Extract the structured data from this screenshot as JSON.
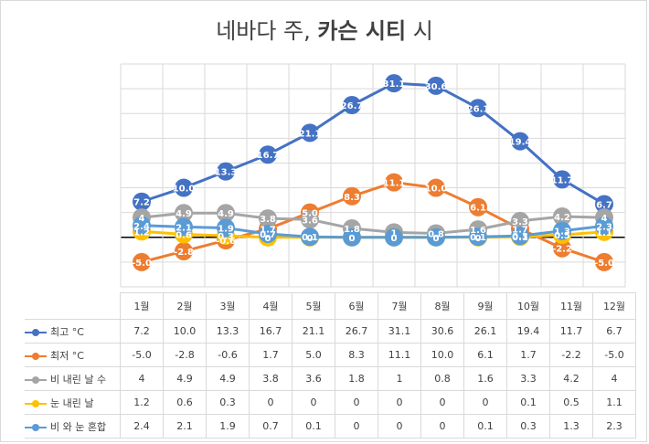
{
  "chart_data": {
    "type": "line",
    "title_prefix": "네바다 주, ",
    "title_bold": "카슨 시티",
    "title_suffix": " 시",
    "categories": [
      "1월",
      "2월",
      "3월",
      "4월",
      "5월",
      "6월",
      "7월",
      "8월",
      "9월",
      "10월",
      "11월",
      "12월"
    ],
    "series": [
      {
        "name": "최고 °C",
        "color": "#4472c4",
        "values": [
          7.2,
          10.0,
          13.3,
          16.7,
          21.1,
          26.7,
          31.1,
          30.6,
          26.1,
          19.4,
          11.7,
          6.7
        ],
        "labels": [
          "7.2",
          "10.0",
          "13.3",
          "16.7",
          "21.1",
          "26.7",
          "31.1",
          "30.6",
          "26.1",
          "19.4",
          "11.7",
          "6.7"
        ]
      },
      {
        "name": "최저 °C",
        "color": "#ed7d31",
        "values": [
          -5.0,
          -2.8,
          -0.6,
          1.7,
          5.0,
          8.3,
          11.1,
          10.0,
          6.1,
          1.7,
          -2.2,
          -5.0
        ],
        "labels": [
          "-5.0",
          "-2.8",
          "-0.6",
          "1.7",
          "5.0",
          "8.3",
          "11.1",
          "10.0",
          "6.1",
          "1.7",
          "-2.2",
          "-5.0"
        ]
      },
      {
        "name": "비 내린 날 수",
        "color": "#a5a5a5",
        "values": [
          4,
          4.9,
          4.9,
          3.8,
          3.6,
          1.8,
          1,
          0.8,
          1.6,
          3.3,
          4.2,
          4
        ],
        "labels": [
          "4",
          "4.9",
          "4.9",
          "3.8",
          "3.6",
          "1.8",
          "1",
          "0.8",
          "1.6",
          "3.3",
          "4.2",
          "4"
        ]
      },
      {
        "name": "눈 내린 날",
        "color": "#ffc000",
        "values": [
          1.2,
          0.6,
          0.3,
          0,
          0,
          0,
          0,
          0,
          0,
          0.1,
          0.5,
          1.1
        ],
        "labels": [
          "1.2",
          "0.6",
          "0.3",
          "0",
          "0",
          "0",
          "0",
          "0",
          "0",
          "0.1",
          "0.5",
          "1.1"
        ]
      },
      {
        "name": "비 와 눈 혼합",
        "color": "#5b9bd5",
        "values": [
          2.4,
          2.1,
          1.9,
          0.7,
          0.1,
          0,
          0,
          0,
          0.1,
          0.3,
          1.3,
          2.3
        ],
        "labels": [
          "2.4",
          "2.1",
          "1.9",
          "0.7",
          "0.1",
          "0",
          "0",
          "0",
          "0.1",
          "0.3",
          "1.3",
          "2.3"
        ]
      }
    ],
    "ylim": [
      -10,
      35
    ],
    "gridlines": true,
    "legend": "data-table"
  }
}
